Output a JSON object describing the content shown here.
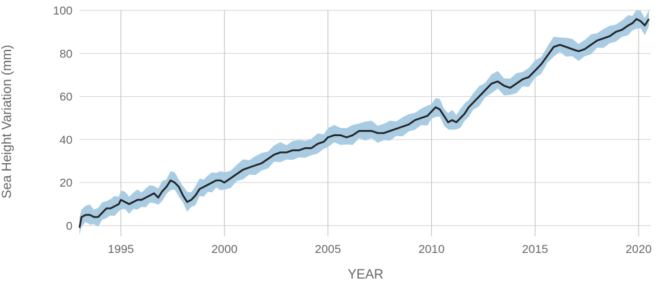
{
  "chart_data": {
    "type": "area",
    "title": "",
    "xlabel": "YEAR",
    "ylabel": "Sea Height Variation (mm)",
    "xlim": [
      1993.0,
      2020.6
    ],
    "ylim": [
      -5,
      100
    ],
    "x_ticks": [
      1995,
      2000,
      2005,
      2010,
      2015,
      2020
    ],
    "y_ticks": [
      0,
      20,
      40,
      60,
      80,
      100
    ],
    "grid": true,
    "legend": "none",
    "colors": {
      "line": "#222222",
      "band": "#a9cce3",
      "grid": "#d3d3d3",
      "text": "#666666"
    },
    "band_halfwidth": 4,
    "series": [
      {
        "x": [
          1993.0,
          1993.1,
          1993.3,
          1993.5,
          1993.7,
          1993.9,
          1994.1,
          1994.3,
          1994.5,
          1994.7,
          1994.9,
          1995.0,
          1995.2,
          1995.4,
          1995.6,
          1995.8,
          1996.0,
          1996.2,
          1996.4,
          1996.6,
          1996.8,
          1997.0,
          1997.2,
          1997.4,
          1997.6,
          1997.8,
          1998.0,
          1998.2,
          1998.4,
          1998.6,
          1998.8,
          1999.0,
          1999.2,
          1999.4,
          1999.6,
          1999.8,
          2000.0,
          2000.3,
          2000.6,
          2000.9,
          2001.2,
          2001.5,
          2001.8,
          2002.1,
          2002.4,
          2002.7,
          2003.0,
          2003.3,
          2003.6,
          2003.9,
          2004.2,
          2004.5,
          2004.8,
          2005.0,
          2005.3,
          2005.6,
          2005.9,
          2006.2,
          2006.5,
          2006.8,
          2007.1,
          2007.4,
          2007.7,
          2008.0,
          2008.3,
          2008.6,
          2008.9,
          2009.2,
          2009.5,
          2009.8,
          2010.0,
          2010.2,
          2010.4,
          2010.6,
          2010.8,
          2011.0,
          2011.2,
          2011.4,
          2011.6,
          2011.8,
          2012.0,
          2012.3,
          2012.6,
          2012.9,
          2013.2,
          2013.5,
          2013.8,
          2014.1,
          2014.4,
          2014.7,
          2015.0,
          2015.3,
          2015.6,
          2015.9,
          2016.2,
          2016.5,
          2016.8,
          2017.1,
          2017.4,
          2017.7,
          2018.0,
          2018.3,
          2018.6,
          2018.9,
          2019.2,
          2019.5,
          2019.7,
          2019.9,
          2020.1,
          2020.3,
          2020.5
        ],
        "values": [
          -1,
          4,
          5,
          5,
          4,
          4,
          6,
          8,
          8,
          9,
          10,
          12,
          11,
          10,
          11,
          12,
          12,
          13,
          14,
          15,
          13,
          16,
          18,
          21,
          20,
          18,
          14,
          11,
          12,
          14,
          17,
          18,
          19,
          20,
          21,
          21,
          20,
          22,
          24,
          26,
          27,
          28,
          29,
          31,
          33,
          34,
          34,
          35,
          35,
          36,
          36,
          38,
          39,
          41,
          42,
          42,
          41,
          42,
          44,
          44,
          44,
          43,
          43,
          44,
          45,
          46,
          47,
          49,
          50,
          51,
          53,
          55,
          54,
          51,
          48,
          49,
          48,
          50,
          52,
          55,
          57,
          60,
          63,
          66,
          67,
          65,
          64,
          66,
          68,
          69,
          72,
          75,
          79,
          83,
          84,
          83,
          82,
          81,
          82,
          84,
          86,
          87,
          88,
          90,
          91,
          93,
          94,
          96,
          95,
          93,
          96
        ]
      }
    ]
  }
}
